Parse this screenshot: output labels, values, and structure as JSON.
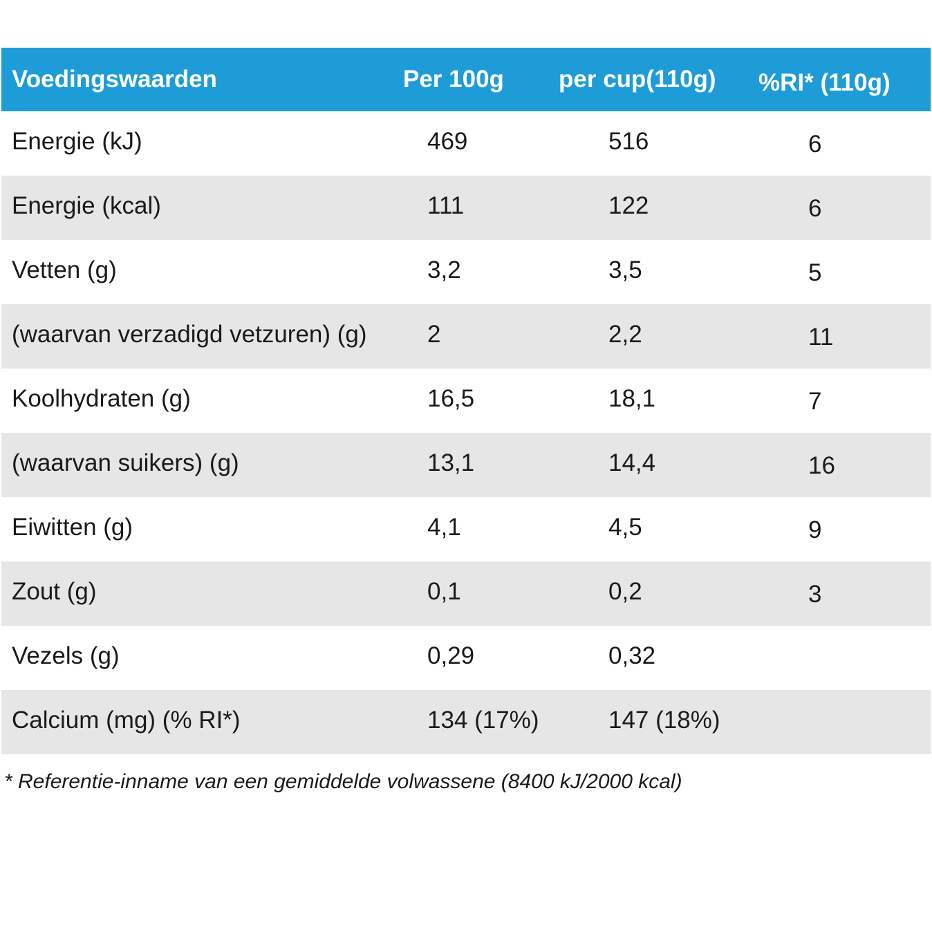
{
  "table": {
    "headers": [
      "Voedingswaarden",
      "Per 100g",
      "per cup(110g)",
      "%RI* (110g)"
    ],
    "rows": [
      {
        "name": "Energie (kJ)",
        "per100": "469",
        "percup": "516",
        "ri": "6"
      },
      {
        "name": "Energie (kcal)",
        "per100": "111",
        "percup": "122",
        "ri": "6"
      },
      {
        "name": "Vetten (g)",
        "per100": "3,2",
        "percup": "3,5",
        "ri": "5"
      },
      {
        "name": "(waarvan verzadigd vetzuren) (g)",
        "per100": "2",
        "percup": "2,2",
        "ri": "11"
      },
      {
        "name": "Koolhydraten (g)",
        "per100": "16,5",
        "percup": "18,1",
        "ri": "7"
      },
      {
        "name": "(waarvan suikers) (g)",
        "per100": "13,1",
        "percup": "14,4",
        "ri": "16"
      },
      {
        "name": "Eiwitten (g)",
        "per100": "4,1",
        "percup": "4,5",
        "ri": "9"
      },
      {
        "name": "Zout (g)",
        "per100": "0,1",
        "percup": "0,2",
        "ri": "3"
      },
      {
        "name": "Vezels (g)",
        "per100": "0,29",
        "percup": "0,32",
        "ri": ""
      },
      {
        "name": "Calcium (mg) (% RI*)",
        "per100": "134 (17%)",
        "percup": "147 (18%)",
        "ri": ""
      }
    ]
  },
  "footnote": "* Referentie-inname van een gemiddelde volwassene (8400 kJ/2000 kcal)",
  "colors": {
    "header_bg": "#1e9cd7",
    "header_text": "#ffffff",
    "stripe": "#e6e6e6"
  }
}
